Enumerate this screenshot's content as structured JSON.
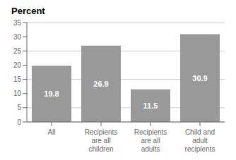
{
  "chart_data": {
    "type": "bar",
    "title": "Percent",
    "categories": [
      "All",
      "Recipients\nare all\nchildren",
      "Recipients\nare all\nadults",
      "Child and\nadult\nrecipients"
    ],
    "values": [
      19.8,
      26.9,
      11.5,
      30.9
    ],
    "color": "#999999",
    "ylim": [
      0,
      35
    ],
    "yticks": [
      0,
      5,
      10,
      15,
      20,
      25,
      30,
      35
    ],
    "grid": true,
    "data_labels": true
  }
}
